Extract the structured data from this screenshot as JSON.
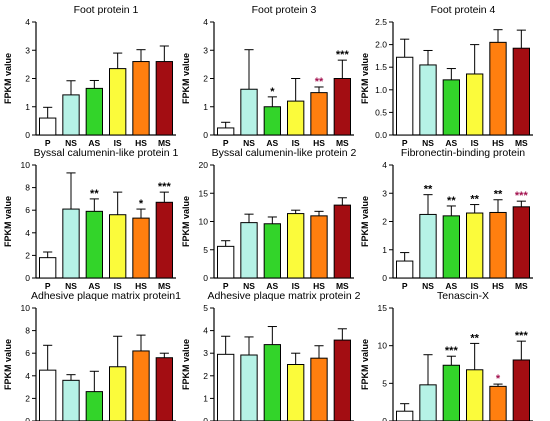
{
  "colors": {
    "P": "#ffffff",
    "NS": "#b6f2e6",
    "AS": "#33d42a",
    "IS": "#fbfb3b",
    "HS": "#ff7f0f",
    "MS": "#a30d12",
    "axis": "#000000",
    "star_default": "#000000",
    "star_highlight": "#a3124f"
  },
  "chart_data": [
    {
      "type": "bar",
      "title": "Foot protein 1",
      "categories": [
        "P",
        "NS",
        "AS",
        "IS",
        "HS",
        "MS"
      ],
      "values": [
        0.6,
        1.42,
        1.65,
        2.35,
        2.6,
        2.6
      ],
      "errors": [
        0.38,
        0.5,
        0.28,
        0.55,
        0.42,
        0.55
      ],
      "stars": [
        "",
        "",
        "",
        "",
        "",
        ""
      ],
      "star_colors": [
        "",
        "",
        "",
        "",
        "",
        ""
      ],
      "ylabel": "FPKM value",
      "ylim": [
        0,
        4
      ],
      "yticks": [
        0,
        1,
        2,
        3,
        4
      ],
      "ytick_labels": [
        "0",
        "1",
        "2",
        "3",
        "4"
      ]
    },
    {
      "type": "bar",
      "title": "Foot protein 3",
      "categories": [
        "P",
        "NS",
        "AS",
        "IS",
        "HS",
        "MS"
      ],
      "values": [
        0.25,
        1.62,
        1.0,
        1.2,
        1.5,
        2.0
      ],
      "errors": [
        0.2,
        1.4,
        0.35,
        0.8,
        0.2,
        0.65
      ],
      "stars": [
        "",
        "",
        "*",
        "",
        "**",
        "***"
      ],
      "star_colors": [
        "",
        "",
        "default",
        "",
        "highlight",
        "default"
      ],
      "ylabel": "FPKM value",
      "ylim": [
        0,
        4
      ],
      "yticks": [
        0,
        1,
        2,
        3,
        4
      ],
      "ytick_labels": [
        "0",
        "1",
        "2",
        "3",
        "4"
      ]
    },
    {
      "type": "bar",
      "title": "Foot protein 4",
      "categories": [
        "P",
        "NS",
        "AS",
        "IS",
        "HS",
        "MS"
      ],
      "values": [
        1.72,
        1.55,
        1.22,
        1.35,
        2.05,
        1.92
      ],
      "errors": [
        0.4,
        0.32,
        0.25,
        0.65,
        0.28,
        0.4
      ],
      "stars": [
        "",
        "",
        "",
        "",
        "",
        ""
      ],
      "star_colors": [
        "",
        "",
        "",
        "",
        "",
        ""
      ],
      "ylabel": "FPKM value",
      "ylim": [
        0,
        2.5
      ],
      "yticks": [
        0,
        0.5,
        1,
        1.5,
        2,
        2.5
      ],
      "ytick_labels": [
        "0.0",
        "0.5",
        "1.0",
        "1.5",
        "2.0",
        "2.5"
      ]
    },
    {
      "type": "bar",
      "title": "Byssal calumenin-like protein 1",
      "categories": [
        "P",
        "NS",
        "AS",
        "IS",
        "HS",
        "MS"
      ],
      "values": [
        1.8,
        6.1,
        5.9,
        5.6,
        5.3,
        6.7
      ],
      "errors": [
        0.5,
        3.2,
        1.1,
        2.0,
        0.8,
        0.9
      ],
      "stars": [
        "",
        "",
        "**",
        "",
        "*",
        "***"
      ],
      "star_colors": [
        "",
        "",
        "default",
        "",
        "default",
        "default"
      ],
      "ylabel": "FPKM value",
      "ylim": [
        0,
        10
      ],
      "yticks": [
        0,
        2,
        4,
        6,
        8,
        10
      ],
      "ytick_labels": [
        "0",
        "2",
        "4",
        "6",
        "8",
        "10"
      ]
    },
    {
      "type": "bar",
      "title": "Byssal calumenin-like protein 2",
      "categories": [
        "P",
        "NS",
        "AS",
        "IS",
        "HS",
        "MS"
      ],
      "values": [
        5.6,
        9.8,
        9.6,
        11.4,
        11.0,
        12.9
      ],
      "errors": [
        1.0,
        1.5,
        1.2,
        0.6,
        0.8,
        1.3
      ],
      "stars": [
        "",
        "",
        "",
        "",
        "",
        ""
      ],
      "star_colors": [
        "",
        "",
        "",
        "",
        "",
        ""
      ],
      "ylabel": "FPKM value",
      "ylim": [
        0,
        20
      ],
      "yticks": [
        0,
        5,
        10,
        15,
        20
      ],
      "ytick_labels": [
        "0",
        "5",
        "10",
        "15",
        "20"
      ]
    },
    {
      "type": "bar",
      "title": "Fibronectin-binding protein",
      "categories": [
        "P",
        "NS",
        "AS",
        "IS",
        "HS",
        "MS"
      ],
      "values": [
        0.6,
        2.25,
        2.2,
        2.3,
        2.32,
        2.52
      ],
      "errors": [
        0.3,
        0.7,
        0.35,
        0.3,
        0.45,
        0.2
      ],
      "stars": [
        "",
        "**",
        "**",
        "**",
        "**",
        "***"
      ],
      "star_colors": [
        "",
        "default",
        "default",
        "default",
        "default",
        "highlight"
      ],
      "ylabel": "FPKM value",
      "ylim": [
        0,
        4
      ],
      "yticks": [
        0,
        1,
        2,
        3,
        4
      ],
      "ytick_labels": [
        "0",
        "1",
        "2",
        "3",
        "4"
      ]
    },
    {
      "type": "bar",
      "title": "Adhesive plaque matrix protein1",
      "categories": [
        "P",
        "NS",
        "AS",
        "IS",
        "HS",
        "MS"
      ],
      "values": [
        4.5,
        3.6,
        2.6,
        4.8,
        6.2,
        5.6
      ],
      "errors": [
        2.2,
        0.5,
        1.8,
        2.7,
        1.4,
        0.4
      ],
      "stars": [
        "",
        "",
        "",
        "",
        "",
        ""
      ],
      "star_colors": [
        "",
        "",
        "",
        "",
        "",
        ""
      ],
      "ylabel": "FPKM value",
      "ylim": [
        0,
        10
      ],
      "yticks": [
        0,
        2,
        4,
        6,
        8,
        10
      ],
      "ytick_labels": [
        "0",
        "2",
        "4",
        "6",
        "8",
        "10"
      ]
    },
    {
      "type": "bar",
      "title": "Adhesive plaque matrix protein 2",
      "categories": [
        "P",
        "NS",
        "AS",
        "IS",
        "HS",
        "MS"
      ],
      "values": [
        2.95,
        2.92,
        3.38,
        2.5,
        2.78,
        3.58
      ],
      "errors": [
        0.8,
        0.8,
        0.8,
        0.5,
        0.55,
        0.5
      ],
      "stars": [
        "",
        "",
        "",
        "",
        "",
        ""
      ],
      "star_colors": [
        "",
        "",
        "",
        "",
        "",
        ""
      ],
      "ylabel": "FPKM value",
      "ylim": [
        0,
        5
      ],
      "yticks": [
        0,
        1,
        2,
        3,
        4,
        5
      ],
      "ytick_labels": [
        "0",
        "1",
        "2",
        "3",
        "4",
        "5"
      ]
    },
    {
      "type": "bar",
      "title": "Tenascin-X",
      "categories": [
        "P",
        "NS",
        "AS",
        "IS",
        "HS",
        "MS"
      ],
      "values": [
        1.3,
        4.8,
        7.4,
        6.8,
        4.6,
        8.1
      ],
      "errors": [
        1.0,
        4.0,
        1.2,
        3.5,
        0.3,
        2.5
      ],
      "stars": [
        "",
        "",
        "***",
        "**",
        "*",
        "***"
      ],
      "star_colors": [
        "",
        "",
        "default",
        "default",
        "highlight",
        "default"
      ],
      "ylabel": "FPKM value",
      "ylim": [
        0,
        15
      ],
      "yticks": [
        0,
        5,
        10,
        15
      ],
      "ytick_labels": [
        "0",
        "5",
        "10",
        "15"
      ]
    }
  ]
}
